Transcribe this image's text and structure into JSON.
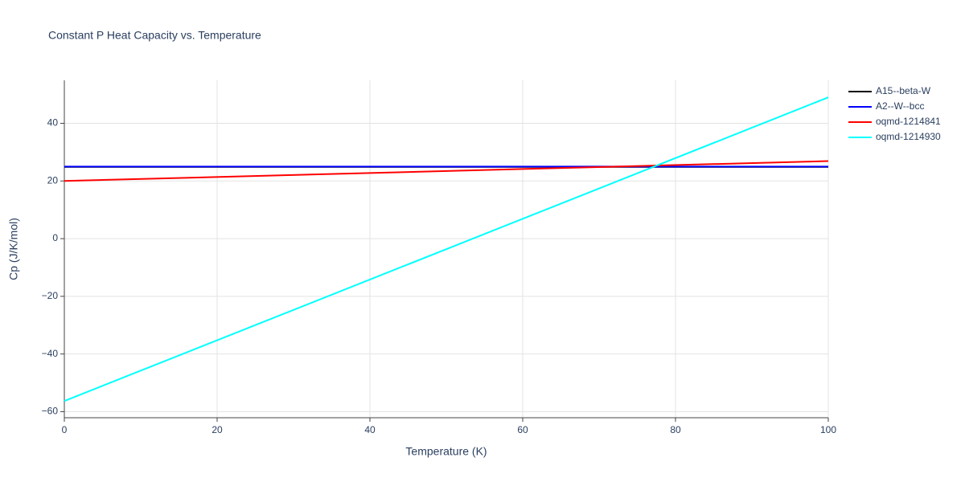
{
  "chart_data": {
    "type": "line",
    "title": "Constant P Heat Capacity vs. Temperature",
    "x_label": "Temperature (K)",
    "y_label": "Cp (J/K/mol)",
    "x": [
      0,
      100
    ],
    "series": [
      {
        "name": "A15--beta-W",
        "color": "#000000",
        "values": [
          24.9,
          24.9
        ]
      },
      {
        "name": "A2--W--bcc",
        "color": "#0000ff",
        "values": [
          25,
          25
        ]
      },
      {
        "name": "oqmd-1214841",
        "color": "#ff0000",
        "values": [
          20,
          26.9
        ]
      },
      {
        "name": "oqmd-1214930",
        "color": "#00ffff",
        "values": [
          -56.3,
          49
        ]
      }
    ],
    "xlim": [
      0,
      100
    ],
    "ylim": [
      -62.1,
      54.9
    ],
    "xticks": [
      0,
      20,
      40,
      60,
      80,
      100
    ],
    "yticks": [
      {
        "value": -60,
        "label": "−60"
      },
      {
        "value": -40,
        "label": "−40"
      },
      {
        "value": -20,
        "label": "−20"
      },
      0,
      20,
      40
    ],
    "grid": true,
    "legend": "right"
  }
}
